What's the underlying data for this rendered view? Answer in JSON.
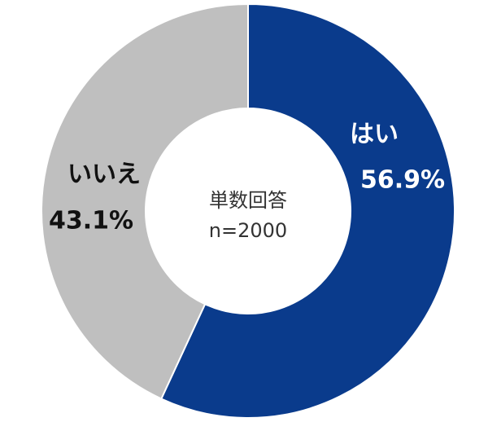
{
  "chart_data": {
    "type": "pie",
    "categories": [
      "はい",
      "いいえ"
    ],
    "values": [
      56.9,
      43.1
    ],
    "value_labels": [
      "56.9%",
      "43.1%"
    ],
    "colors": [
      "#0a3b8c",
      "#bfbfbf"
    ],
    "label_colors": [
      "#ffffff",
      "#111111"
    ],
    "center_text": [
      "単数回答",
      "n=2000"
    ]
  }
}
